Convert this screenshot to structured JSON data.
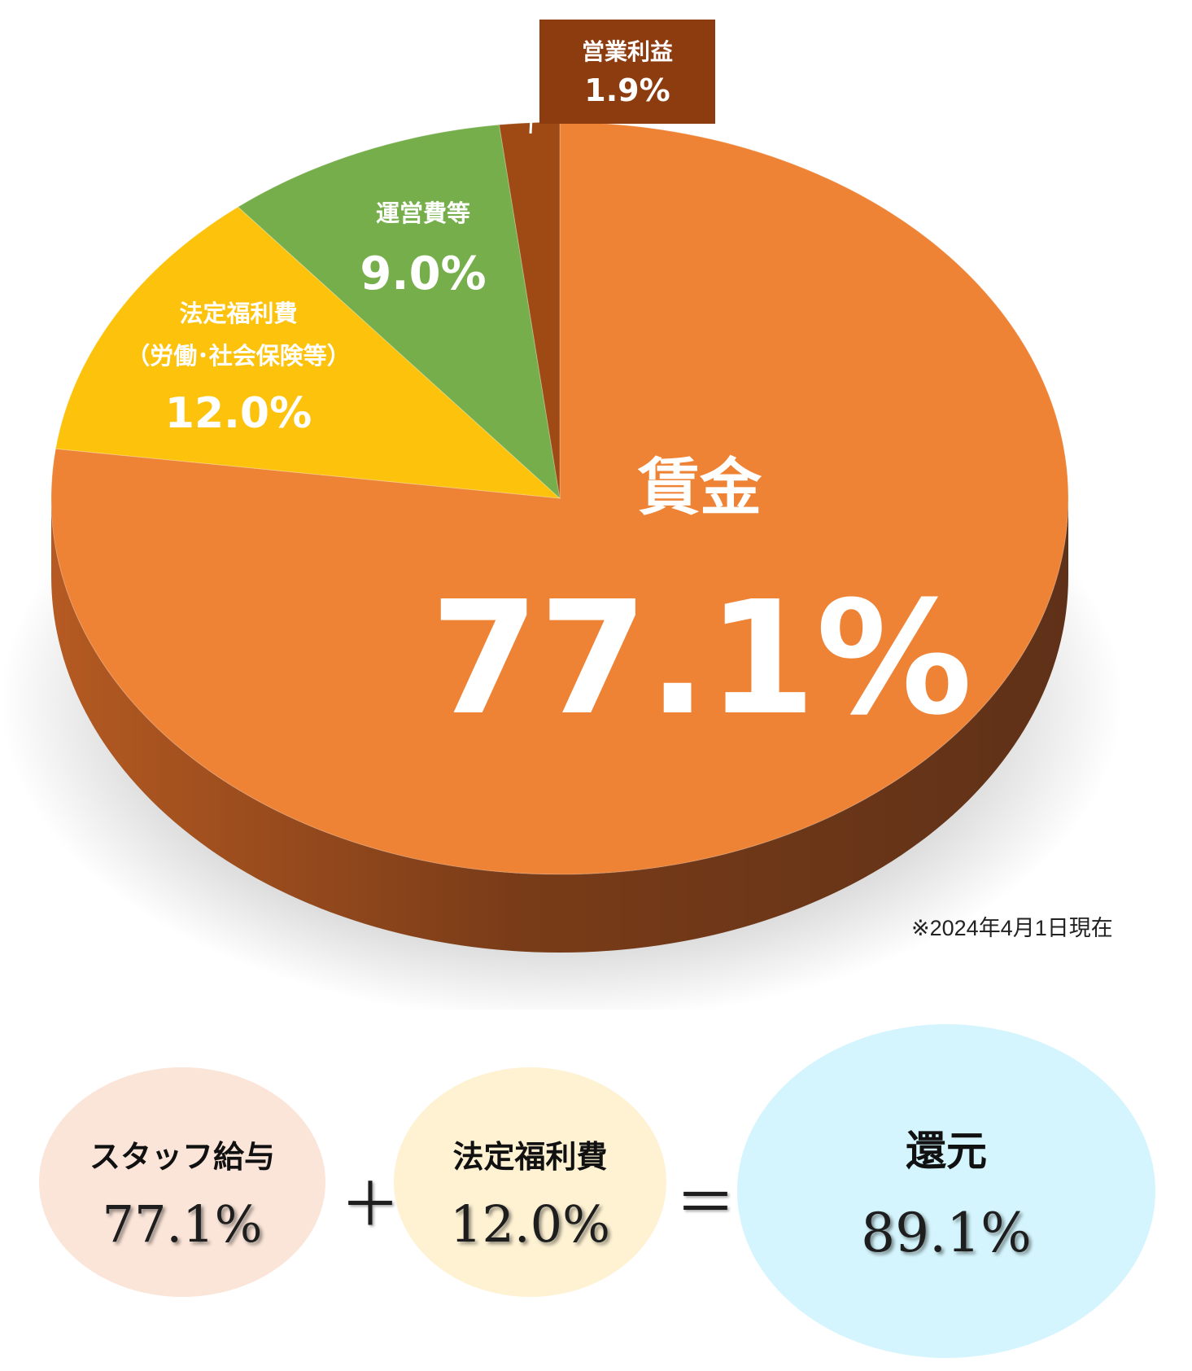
{
  "chart_data": {
    "type": "pie",
    "title": "",
    "slices": [
      {
        "label": "賃金",
        "value": 77.1,
        "display": "77.1%",
        "color": "#ee8336"
      },
      {
        "label": "法定福利費（労働・社会保険等）",
        "label_lines": [
          "法定福利費",
          "（労働･社会保険等）"
        ],
        "value": 12.0,
        "display": "12.0%",
        "color": "#fdc20c"
      },
      {
        "label": "運営費等",
        "value": 9.0,
        "display": "9.0%",
        "color": "#75ae4a"
      },
      {
        "label": "営業利益",
        "value": 1.9,
        "display": "1.9%",
        "color": "#9f4a14"
      }
    ],
    "side_colors": {
      "light": "#b55a22",
      "dark": "#5f3118"
    },
    "callout_color": "#8c3c0f",
    "note": "※2024年4月1日現在"
  },
  "equation": {
    "staff": {
      "label": "スタッフ給与",
      "value": "77.1%"
    },
    "plus": "＋",
    "welfare": {
      "label": "法定福利費",
      "value": "12.0%"
    },
    "equals": "＝",
    "total": {
      "label": "還元",
      "value": "89.1%"
    }
  }
}
